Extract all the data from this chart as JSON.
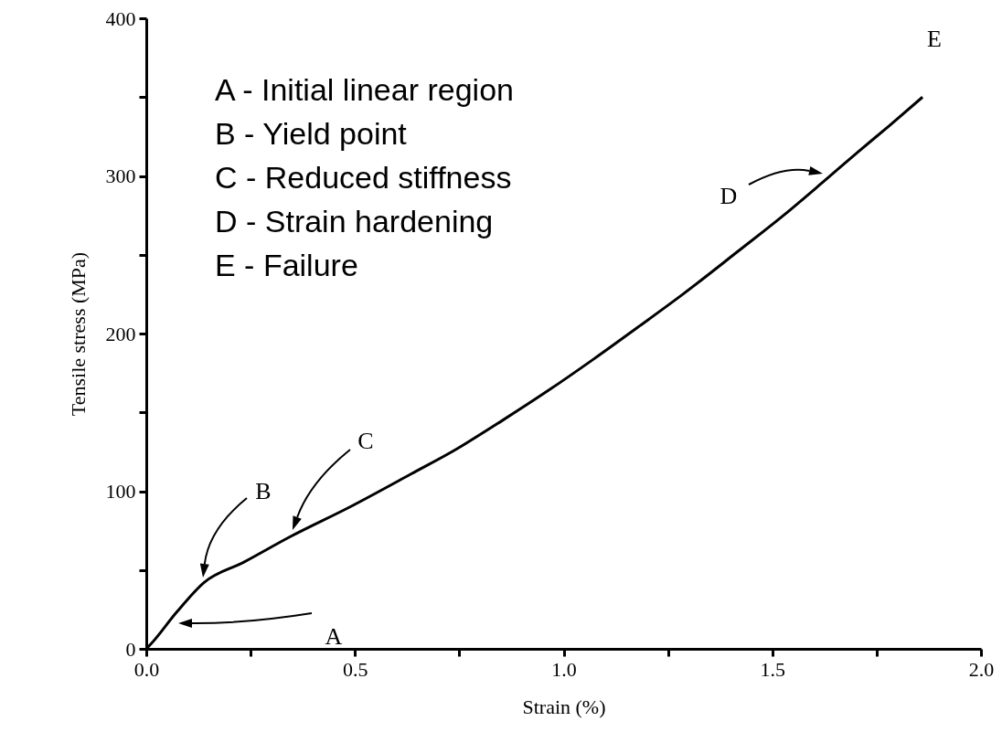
{
  "chart_data": {
    "type": "line",
    "xlabel": "Strain (%)",
    "ylabel": "Tensile stress (MPa)",
    "x": [
      0,
      0.011,
      0.072,
      0.138,
      0.234,
      0.344,
      0.488,
      0.635,
      0.745,
      0.854,
      0.964,
      1.073,
      1.183,
      1.286,
      1.417,
      1.527,
      1.621,
      1.709,
      1.781,
      1.86
    ],
    "series": [
      {
        "color": "#000000",
        "values": [
          0,
          3,
          23,
          42,
          55,
          71,
          90,
          111,
          127,
          145,
          164,
          184,
          205,
          225,
          252,
          275,
          296,
          316,
          332,
          350
        ]
      }
    ],
    "xlim": [
      0,
      2
    ],
    "ylim": [
      0,
      400
    ],
    "xticks": [
      {
        "value": 0,
        "label": "0.0"
      },
      {
        "value": 0.25,
        "label": null
      },
      {
        "value": 0.5,
        "label": "0.5"
      },
      {
        "value": 0.75,
        "label": null
      },
      {
        "value": 1,
        "label": "1.0"
      },
      {
        "value": 1.25,
        "label": null
      },
      {
        "value": 1.5,
        "label": "1.5"
      },
      {
        "value": 1.75,
        "label": null
      },
      {
        "value": 2,
        "label": "2.0"
      }
    ],
    "yticks": [
      0,
      {
        "value": 50,
        "label": null
      },
      100,
      {
        "value": 150,
        "label": null
      },
      200,
      {
        "value": 250,
        "label": null
      },
      300,
      {
        "value": 350,
        "label": null
      },
      400
    ],
    "grid": false,
    "annotations": [
      "A",
      "B",
      "C",
      "D",
      "E",
      "A - Initial linear region",
      "B - Yield point",
      "C - Reduced stiffness",
      "D - Strain hardening",
      "E - Failure"
    ]
  }
}
